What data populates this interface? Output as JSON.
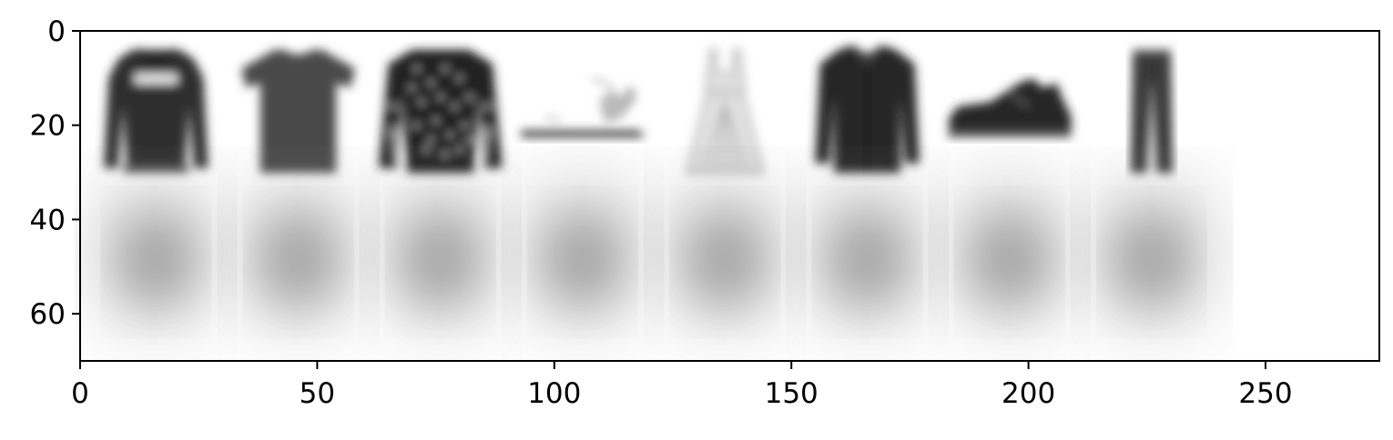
{
  "chart_data": {
    "type": "image",
    "title": "",
    "xlabel": "",
    "ylabel": "",
    "xlim": [
      0,
      274
    ],
    "ylim": [
      70,
      0
    ],
    "x_ticks": [
      0,
      50,
      100,
      150,
      200,
      250
    ],
    "y_ticks": [
      0,
      20,
      40,
      60
    ],
    "grid": false,
    "colormap": "gray_r",
    "grid_layout": {
      "rows": 2,
      "cols": 8,
      "cell_size": 28,
      "padding": 2
    },
    "rows": [
      {
        "kind": "input",
        "items": [
          "hoodie",
          "t-shirt",
          "patterned-pullover",
          "sandal",
          "dress",
          "shirt",
          "sneaker",
          "trouser"
        ]
      },
      {
        "kind": "reconstruction",
        "items": [
          "blurry-average-garment",
          "blurry-average-garment",
          "blurry-average-garment",
          "blurry-average-garment",
          "blurry-average-garment",
          "blurry-average-garment",
          "blurry-average-garment",
          "blurry-average-garment"
        ]
      }
    ]
  }
}
